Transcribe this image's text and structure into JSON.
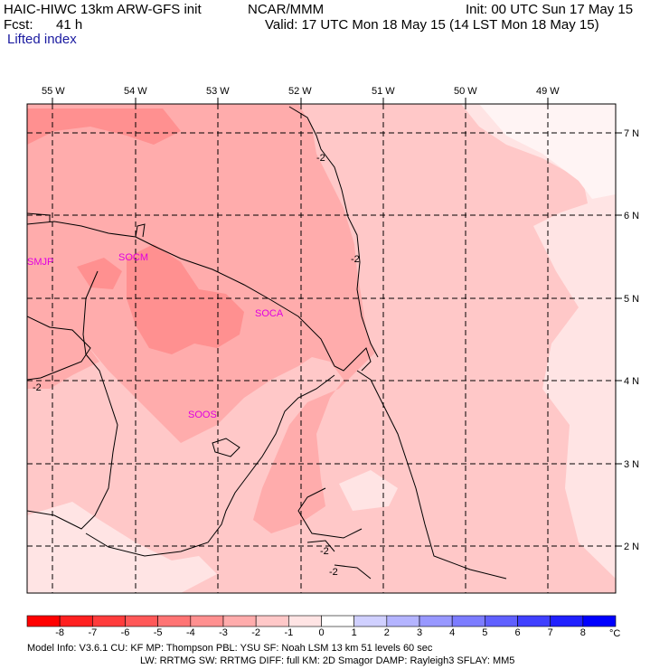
{
  "header": {
    "title": "HAIC-HIWC 13km ARW-GFS init",
    "org": "NCAR/MMM",
    "init": "Init: 00 UTC Sun 17 May 15",
    "fcst_label": "Fcst:",
    "fcst_value": "41 h",
    "valid": "Valid: 17 UTC Mon 18 May 15 (14 LST Mon 18 May 15)",
    "field": "Lifted index"
  },
  "map": {
    "lon_labels": [
      "55 W",
      "54 W",
      "53 W",
      "52 W",
      "51 W",
      "50 W",
      "49 W"
    ],
    "lat_labels": [
      "7 N",
      "6 N",
      "5 N",
      "4 N",
      "3 N",
      "2 N"
    ],
    "contour_label": "-2",
    "stations": [
      "SMJP",
      "SOCM",
      "SOCA",
      "SOOS"
    ]
  },
  "colorbar": {
    "labels": [
      "-8",
      "-7",
      "-6",
      "-5",
      "-4",
      "-3",
      "-2",
      "-1",
      "0",
      "1",
      "2",
      "3",
      "4",
      "5",
      "6",
      "7",
      "8"
    ],
    "unit": "°C",
    "colors": [
      "#ff0000",
      "#ff2020",
      "#ff3c3c",
      "#ff5858",
      "#ff7474",
      "#ff9090",
      "#ffacac",
      "#ffc8c8",
      "#ffe4e4",
      "#ffffff",
      "#d0d0ff",
      "#b4b4ff",
      "#9898ff",
      "#7c7cff",
      "#6060ff",
      "#4040ff",
      "#2020ff",
      "#0000ff"
    ]
  },
  "footer": {
    "line1": "Model Info: V3.6.1     CU: KF        MP: Thompson     PBL: YSU        SF: Noah LSM      13 km    51 levels   60 sec",
    "line2": "LW: RRTMG    SW: RRTMG   DIFF: full    KM: 2D Smagor DAMP: Rayleigh3   SFLAY: MM5"
  }
}
